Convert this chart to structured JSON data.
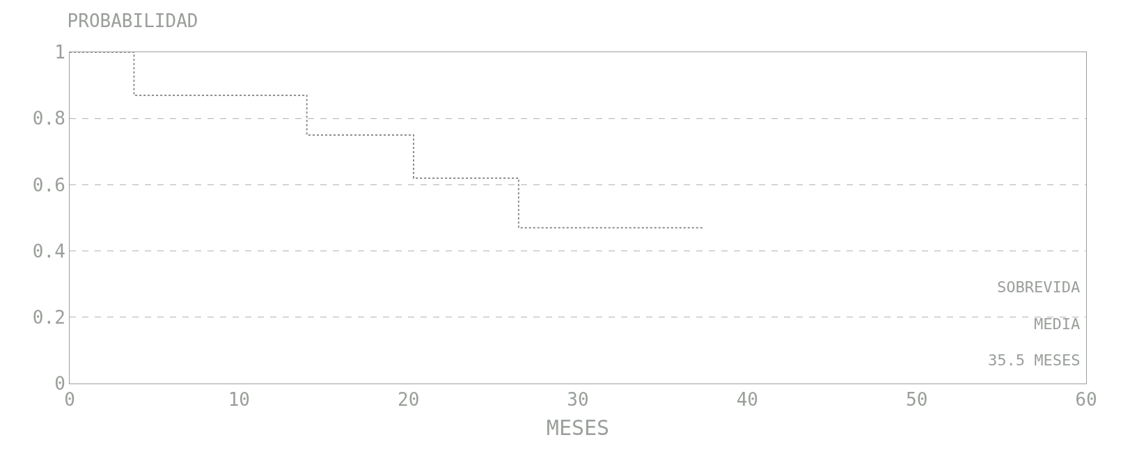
{
  "chart_data": {
    "type": "step",
    "title": "PROBABILIDAD",
    "xlabel": "MESES",
    "x": [
      0,
      3.8,
      14,
      20.3,
      26.5,
      37.4
    ],
    "series": [
      {
        "color": "#8a8f8a",
        "values": [
          1,
          0.87,
          0.75,
          0.62,
          0.47,
          0.47
        ]
      }
    ],
    "xlim": [
      0,
      60
    ],
    "xticks": [
      0,
      10,
      20,
      30,
      40,
      50,
      60
    ],
    "ylim": [
      0,
      1
    ],
    "yticks": [
      0,
      0.2,
      0.4,
      0.6,
      0.8,
      1
    ],
    "grid": "y",
    "line_style": "dotted",
    "marker": "none",
    "annotations": [
      "SOBREVIDA",
      "MEDIA",
      "35.5 MESES"
    ]
  }
}
